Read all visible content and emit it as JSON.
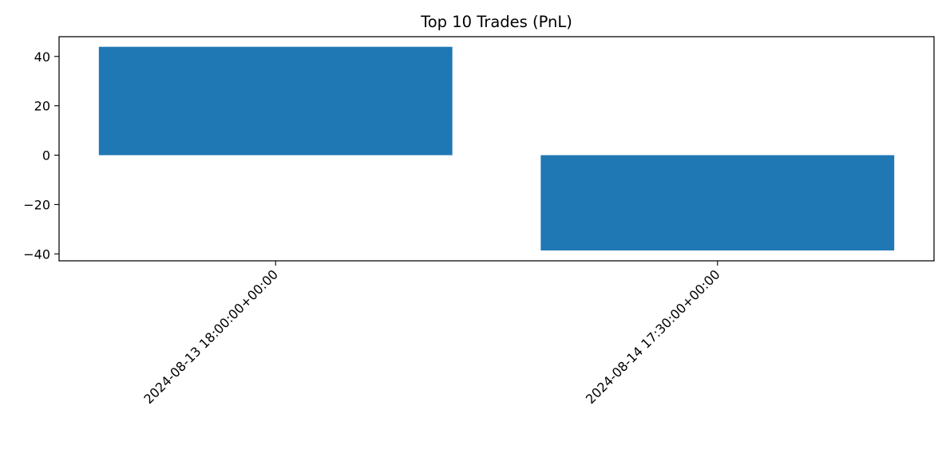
{
  "chart_data": {
    "type": "bar",
    "title": "Top 10 Trades (PnL)",
    "xlabel": "",
    "ylabel": "",
    "categories": [
      "2024-08-13 18:00:00+00:00",
      "2024-08-14 17:30:00+00:00"
    ],
    "values": [
      43.9,
      -38.6
    ],
    "ylim": [
      -42.8,
      48.0
    ],
    "yticks": [
      -40,
      -20,
      0,
      20,
      40
    ],
    "ytick_labels": [
      "−40",
      "−20",
      "0",
      "20",
      "40"
    ],
    "grid": false,
    "bar_color": "#1f77b4"
  }
}
